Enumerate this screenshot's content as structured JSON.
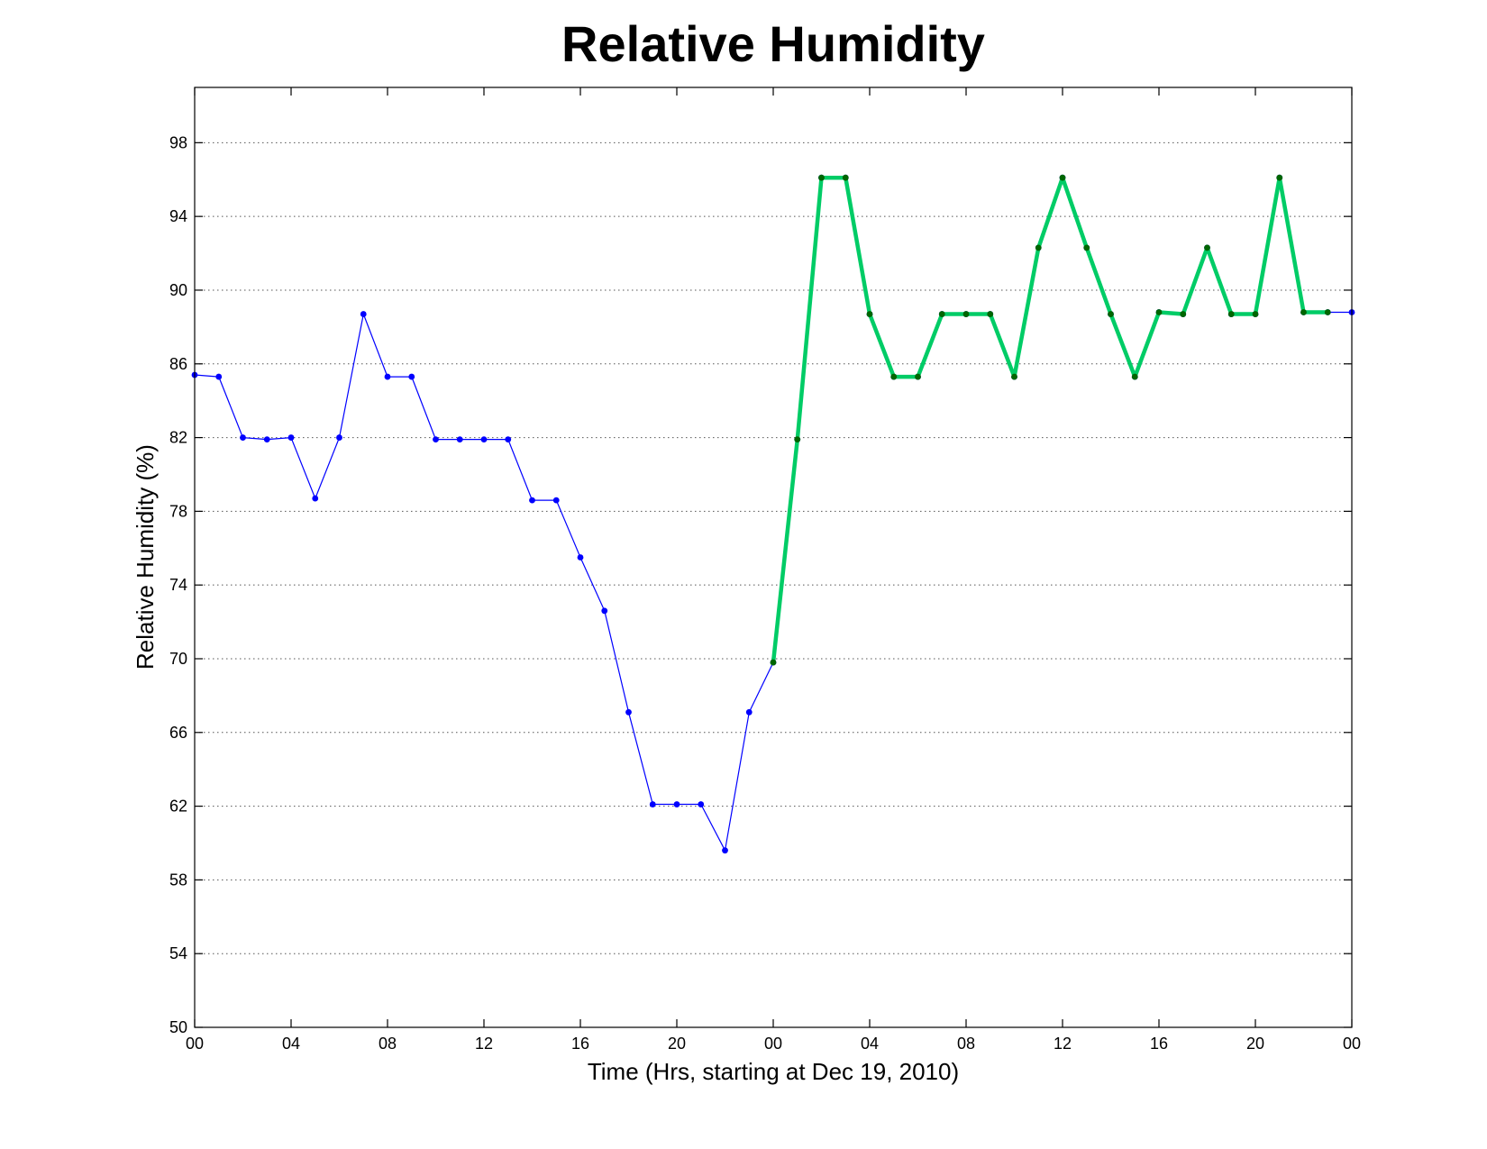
{
  "chart_data": {
    "type": "line",
    "title": "Relative Humidity",
    "xlabel": "Time (Hrs, starting at Dec 19, 2010)",
    "ylabel": "Relative Humidity (%)",
    "xlim": [
      0,
      48
    ],
    "ylim": [
      50,
      101
    ],
    "xticks": [
      0,
      4,
      8,
      12,
      16,
      20,
      24,
      28,
      32,
      36,
      40,
      44,
      48
    ],
    "xticklabels": [
      "00",
      "04",
      "08",
      "12",
      "16",
      "20",
      "00",
      "04",
      "08",
      "12",
      "16",
      "20",
      "00"
    ],
    "yticks": [
      50,
      54,
      58,
      62,
      66,
      70,
      74,
      78,
      82,
      86,
      90,
      94,
      98
    ],
    "grid": "y-dotted",
    "series": [
      {
        "color": "#0000ff",
        "marker_color": "#0000ff",
        "line_width": 1.2,
        "x": [
          0,
          1,
          2,
          3,
          4,
          5,
          6,
          7,
          8,
          9,
          10,
          11,
          12,
          13,
          14,
          15,
          16,
          17,
          18,
          19,
          20,
          21,
          22,
          23,
          24,
          25,
          26,
          27,
          28,
          29,
          30,
          31,
          32,
          33,
          34,
          35,
          36,
          37,
          38,
          39,
          40,
          41,
          42,
          43,
          44,
          45,
          46,
          47,
          48
        ],
        "y": [
          85.4,
          85.3,
          82.0,
          81.9,
          82.0,
          78.7,
          82.0,
          88.7,
          85.3,
          85.3,
          81.9,
          81.9,
          81.9,
          81.9,
          78.6,
          78.6,
          75.5,
          72.6,
          67.1,
          62.1,
          62.1,
          62.1,
          59.6,
          67.1,
          69.8,
          81.9,
          96.1,
          96.1,
          88.7,
          85.3,
          85.3,
          88.7,
          88.7,
          88.7,
          85.3,
          92.3,
          96.1,
          92.3,
          88.7,
          85.3,
          88.8,
          88.7,
          92.3,
          88.7,
          88.7,
          96.1,
          88.8,
          88.8,
          88.8
        ]
      },
      {
        "color": "#00cc66",
        "marker_color": "#006600",
        "line_width": 4.5,
        "x": [
          24,
          25,
          26,
          27,
          28,
          29,
          30,
          31,
          32,
          33,
          34,
          35,
          36,
          37,
          38,
          39,
          40,
          41,
          42,
          43,
          44,
          45,
          46,
          47
        ],
        "y": [
          69.8,
          81.9,
          96.1,
          96.1,
          88.7,
          85.3,
          85.3,
          88.7,
          88.7,
          88.7,
          85.3,
          92.3,
          96.1,
          92.3,
          88.7,
          85.3,
          88.8,
          88.7,
          92.3,
          88.7,
          88.7,
          96.1,
          88.8,
          88.8
        ]
      }
    ]
  }
}
